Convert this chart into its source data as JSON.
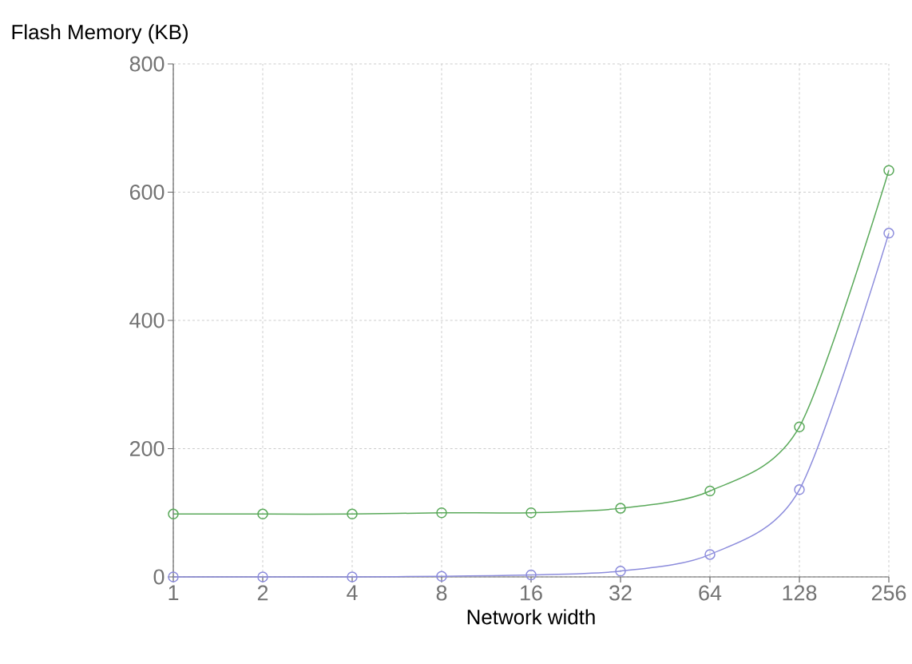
{
  "chart_data": {
    "type": "line",
    "xlabel": "Network width",
    "ylabel": "Flash Memory (KB)",
    "categories": [
      "1",
      "2",
      "4",
      "8",
      "16",
      "32",
      "64",
      "128",
      "256"
    ],
    "series": [
      {
        "color": "#5aa95a",
        "values": [
          98,
          98,
          98,
          100,
          100,
          107,
          134,
          234,
          634
        ]
      },
      {
        "color": "#8c8cdc",
        "values": [
          0,
          0,
          0,
          1,
          3,
          9,
          35,
          136,
          536
        ]
      }
    ],
    "ylim": [
      0,
      800
    ],
    "yticks": [
      0,
      200,
      400,
      600,
      800
    ],
    "grid": true,
    "marker": "circle",
    "line_style": "solid"
  }
}
